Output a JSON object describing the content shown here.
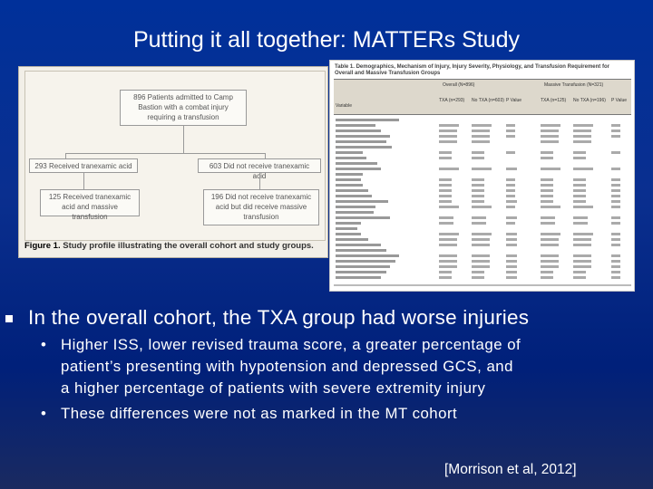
{
  "slide": {
    "title": "Putting it all together: MATTERs Study",
    "citation": "[Morrison et al, 2012]"
  },
  "figure1": {
    "boxes": {
      "top": "896 Patients admitted to Camp Bastion with a combat injury requiring a transfusion",
      "left_mid": "293 Received tranexamic acid",
      "right_mid": "603 Did not receive tranexamic acid",
      "left_bottom": "125 Received tranexamic acid and massive transfusion",
      "right_bottom": "196 Did not receive tranexamic acid but did receive massive transfusion"
    },
    "caption_label": "Figure 1.",
    "caption_text": " Study profile illustrating the overall cohort and study groups."
  },
  "table1": {
    "title": "Table 1. Demographics, Mechanism of Injury, Injury Severity, Physiology, and Transfusion Requirement for Overall and Massive Transfusion Groups",
    "headers": {
      "overall": "Overall (N=896)",
      "mt": "Massive Transfusion (N=321)",
      "variable": "Variable",
      "txa": "TXA (n=293)",
      "notxa": "No TXA (n=603)",
      "p": "P Value",
      "txa2": "TXA (n=125)",
      "notxa2": "No TXA (n=196)",
      "p2": "P Value"
    }
  },
  "bullets": {
    "main": "In the overall cohort, the TXA group had worse injuries",
    "sub": [
      "Higher ISS, lower revised trauma score, a greater percentage of",
      "patient’s presenting with hypotension and depressed GCS, and",
      "a higher percentage of patients with severe extremity injury",
      "These differences were not as marked in the MT cohort"
    ],
    "dot": "•"
  }
}
